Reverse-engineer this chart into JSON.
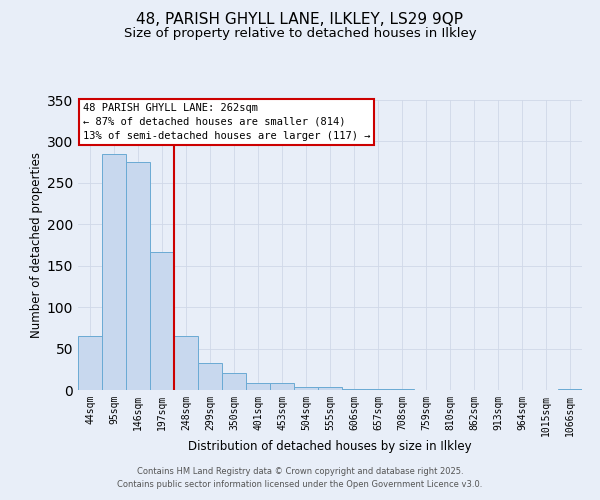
{
  "title": "48, PARISH GHYLL LANE, ILKLEY, LS29 9QP",
  "subtitle": "Size of property relative to detached houses in Ilkley",
  "xlabel": "Distribution of detached houses by size in Ilkley",
  "ylabel": "Number of detached properties",
  "categories": [
    "44sqm",
    "95sqm",
    "146sqm",
    "197sqm",
    "248sqm",
    "299sqm",
    "350sqm",
    "401sqm",
    "453sqm",
    "504sqm",
    "555sqm",
    "606sqm",
    "657sqm",
    "708sqm",
    "759sqm",
    "810sqm",
    "862sqm",
    "913sqm",
    "964sqm",
    "1015sqm",
    "1066sqm"
  ],
  "values": [
    65,
    285,
    275,
    167,
    65,
    33,
    20,
    9,
    8,
    4,
    4,
    1,
    1,
    1,
    0,
    0,
    0,
    0,
    0,
    0,
    1
  ],
  "bar_color": "#c8d8ee",
  "bar_edge_color": "#6aaad4",
  "vline_color": "#cc0000",
  "annotation_title": "48 PARISH GHYLL LANE: 262sqm",
  "annotation_line1": "← 87% of detached houses are smaller (814)",
  "annotation_line2": "13% of semi-detached houses are larger (117) →",
  "annotation_box_color": "#ffffff",
  "annotation_box_edge": "#cc0000",
  "ylim": [
    0,
    350
  ],
  "yticks": [
    0,
    50,
    100,
    150,
    200,
    250,
    300,
    350
  ],
  "footer1": "Contains HM Land Registry data © Crown copyright and database right 2025.",
  "footer2": "Contains public sector information licensed under the Open Government Licence v3.0.",
  "background_color": "#e8eef8",
  "title_fontsize": 11,
  "subtitle_fontsize": 9.5
}
